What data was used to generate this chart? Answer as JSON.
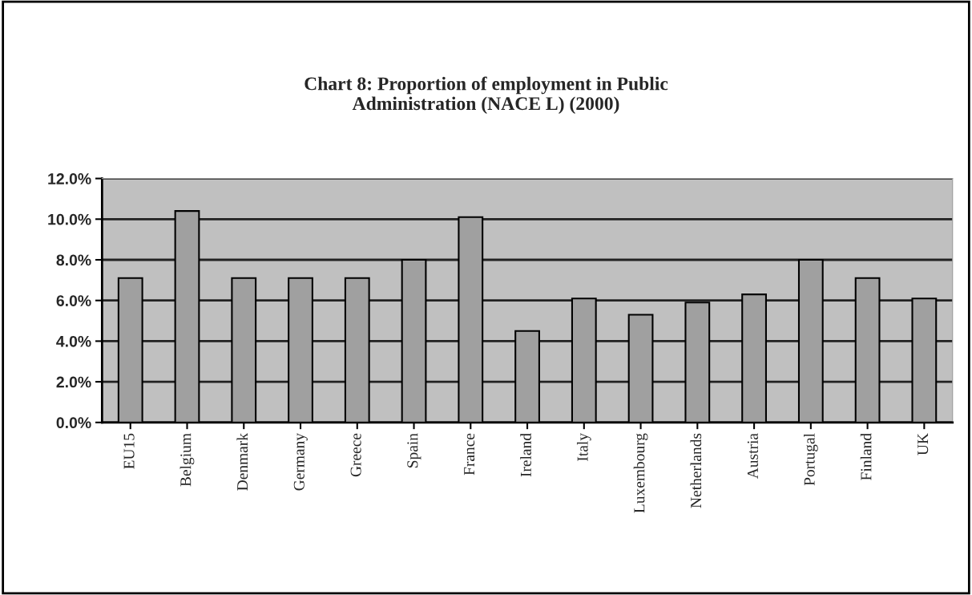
{
  "chart_data": {
    "type": "bar",
    "title": "Chart 8: Proportion of employment in Public\nAdministration (NACE L) (2000)",
    "categories": [
      "EU15",
      "Belgium",
      "Denmark",
      "Germany",
      "Greece",
      "Spain",
      "France",
      "Ireland",
      "Italy",
      "Luxembourg",
      "Netherlands",
      "Austria",
      "Portugal",
      "Finland",
      "UK"
    ],
    "values": [
      7.1,
      10.4,
      7.1,
      7.1,
      7.1,
      8.0,
      10.1,
      4.5,
      6.1,
      5.3,
      5.9,
      6.3,
      8.0,
      7.1,
      6.1
    ],
    "color": "#a0a0a0",
    "ylim": [
      0,
      12
    ],
    "yticks": [
      {
        "value": 0,
        "label": "0.0%"
      },
      {
        "value": 2,
        "label": "2.0%"
      },
      {
        "value": 4,
        "label": "4.0%"
      },
      {
        "value": 6,
        "label": "6.0%"
      },
      {
        "value": 8,
        "label": "8.0%"
      },
      {
        "value": 10,
        "label": "10.0%"
      },
      {
        "value": 12,
        "label": "12.0%"
      }
    ],
    "grid": "y"
  }
}
